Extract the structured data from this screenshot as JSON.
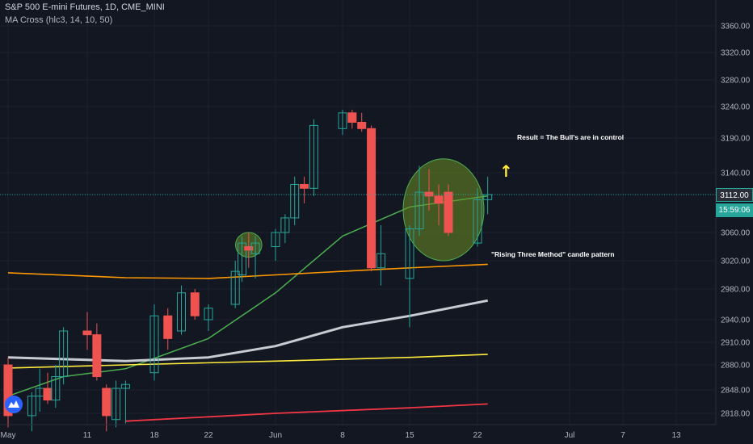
{
  "legend": {
    "symbol_line": "S&P 500 E-mini Futures, 1D, CME_MINI",
    "indicator_line": "MA Cross (hlc3, 14, 10, 50)"
  },
  "price_badge": "3112.00",
  "countdown_badge": "15:59:06",
  "annotations": {
    "result_text": "Result = The Bull's are in control",
    "pattern_text": "\"Rising Three Method\"  candle pattern",
    "arrow_glyph": "↑"
  },
  "colors": {
    "background": "#131722",
    "up": "#26a69a",
    "down": "#ef5350",
    "grid": "#1e222d",
    "ma_green": "#4caf50",
    "ma_orange": "#ff9800",
    "ma_white": "#c8cbd2",
    "ma_yellow": "#ffeb3b",
    "ma_red": "#f23645",
    "highlight_fill": "#6b8e23",
    "arrow": "#ffeb3b"
  },
  "chart_data": {
    "type": "candlestick",
    "y_axis": {
      "ticks": [
        3360,
        3320,
        3280,
        3240,
        3190,
        3140,
        3112,
        3060,
        3020,
        2980,
        2940,
        2910,
        2880,
        2848,
        2818
      ],
      "tick_labels": [
        "3360.00",
        "3320.00",
        "3280.00",
        "3240.00",
        "3190.00",
        "3140.00",
        "3112.00",
        "3060.00",
        "3020.00",
        "2980.00",
        "2940.00",
        "2910.00",
        "2880.00",
        "2848.00",
        "2818.00"
      ]
    },
    "x_axis": {
      "labels": [
        {
          "text": "May",
          "date": "2020-05-01"
        },
        {
          "text": "11",
          "date": "2020-05-11"
        },
        {
          "text": "18",
          "date": "2020-05-18"
        },
        {
          "text": "22",
          "date": "2020-05-22"
        },
        {
          "text": "Jun",
          "date": "2020-06-01"
        },
        {
          "text": "8",
          "date": "2020-06-08"
        },
        {
          "text": "15",
          "date": "2020-06-15"
        },
        {
          "text": "22",
          "date": "2020-06-22"
        },
        {
          "text": "Jul",
          "date": "2020-07-01"
        },
        {
          "text": "7",
          "date": "2020-07-07"
        },
        {
          "text": "13",
          "date": "2020-07-13"
        }
      ]
    },
    "current_price": 3112,
    "candles": [
      {
        "date": "2020-05-01",
        "open": 2880,
        "high": 2890,
        "low": 2800,
        "close": 2815
      },
      {
        "date": "2020-05-04",
        "open": 2815,
        "high": 2845,
        "low": 2795,
        "close": 2840
      },
      {
        "date": "2020-05-05",
        "open": 2840,
        "high": 2875,
        "low": 2820,
        "close": 2850
      },
      {
        "date": "2020-05-06",
        "open": 2850,
        "high": 2870,
        "low": 2830,
        "close": 2835
      },
      {
        "date": "2020-05-07",
        "open": 2835,
        "high": 2880,
        "low": 2825,
        "close": 2865
      },
      {
        "date": "2020-05-08",
        "open": 2865,
        "high": 2930,
        "low": 2855,
        "close": 2925
      },
      {
        "date": "2020-05-11",
        "open": 2925,
        "high": 2950,
        "low": 2900,
        "close": 2920
      },
      {
        "date": "2020-05-12",
        "open": 2920,
        "high": 2935,
        "low": 2860,
        "close": 2865
      },
      {
        "date": "2020-05-13",
        "open": 2850,
        "high": 2855,
        "low": 2795,
        "close": 2815
      },
      {
        "date": "2020-05-14",
        "open": 2810,
        "high": 2860,
        "low": 2800,
        "close": 2850
      },
      {
        "date": "2020-05-15",
        "open": 2850,
        "high": 2860,
        "low": 2805,
        "close": 2855
      },
      {
        "date": "2020-05-18",
        "open": 2870,
        "high": 2960,
        "low": 2860,
        "close": 2945
      },
      {
        "date": "2020-05-19",
        "open": 2945,
        "high": 2955,
        "low": 2900,
        "close": 2915
      },
      {
        "date": "2020-05-20",
        "open": 2925,
        "high": 2985,
        "low": 2920,
        "close": 2975
      },
      {
        "date": "2020-05-21",
        "open": 2975,
        "high": 2980,
        "low": 2940,
        "close": 2945
      },
      {
        "date": "2020-05-22",
        "open": 2940,
        "high": 2960,
        "low": 2925,
        "close": 2955
      },
      {
        "date": "2020-05-26",
        "open": 2960,
        "high": 3020,
        "low": 2955,
        "close": 3005
      },
      {
        "date": "2020-05-27",
        "open": 3000,
        "high": 3055,
        "low": 2990,
        "close": 3045
      },
      {
        "date": "2020-05-28",
        "open": 3040,
        "high": 3060,
        "low": 3010,
        "close": 3035
      },
      {
        "date": "2020-05-29",
        "open": 3030,
        "high": 3055,
        "low": 2995,
        "close": 3045
      },
      {
        "date": "2020-06-01",
        "open": 3040,
        "high": 3065,
        "low": 3020,
        "close": 3060
      },
      {
        "date": "2020-06-02",
        "open": 3060,
        "high": 3085,
        "low": 3045,
        "close": 3080
      },
      {
        "date": "2020-06-03",
        "open": 3080,
        "high": 3135,
        "low": 3070,
        "close": 3125
      },
      {
        "date": "2020-06-04",
        "open": 3125,
        "high": 3135,
        "low": 3100,
        "close": 3120
      },
      {
        "date": "2020-06-05",
        "open": 3120,
        "high": 3220,
        "low": 3110,
        "close": 3210
      },
      {
        "date": "2020-06-08",
        "open": 3205,
        "high": 3235,
        "low": 3195,
        "close": 3230
      },
      {
        "date": "2020-06-09",
        "open": 3230,
        "high": 3235,
        "low": 3205,
        "close": 3215
      },
      {
        "date": "2020-06-10",
        "open": 3215,
        "high": 3230,
        "low": 3200,
        "close": 3205
      },
      {
        "date": "2020-06-11",
        "open": 3205,
        "high": 3210,
        "low": 3005,
        "close": 3010
      },
      {
        "date": "2020-06-12",
        "open": 3010,
        "high": 3070,
        "low": 2985,
        "close": 3030
      },
      {
        "date": "2020-06-15",
        "open": 2995,
        "high": 3070,
        "low": 2930,
        "close": 3065
      },
      {
        "date": "2020-06-16",
        "open": 3065,
        "high": 3150,
        "low": 3055,
        "close": 3115
      },
      {
        "date": "2020-06-17",
        "open": 3115,
        "high": 3145,
        "low": 3090,
        "close": 3110
      },
      {
        "date": "2020-06-18",
        "open": 3110,
        "high": 3125,
        "low": 3070,
        "close": 3100
      },
      {
        "date": "2020-06-19",
        "open": 3115,
        "high": 3125,
        "low": 3055,
        "close": 3060
      },
      {
        "date": "2020-06-22",
        "open": 3045,
        "high": 3120,
        "low": 3040,
        "close": 3105
      },
      {
        "date": "2020-06-23",
        "open": 3105,
        "high": 3135,
        "low": 3085,
        "close": 3112
      }
    ],
    "moving_averages": [
      {
        "name": "green",
        "points": [
          [
            "2020-05-01",
            2840
          ],
          [
            "2020-05-08",
            2865
          ],
          [
            "2020-05-15",
            2875
          ],
          [
            "2020-05-22",
            2915
          ],
          [
            "2020-06-01",
            2975
          ],
          [
            "2020-06-08",
            3055
          ],
          [
            "2020-06-15",
            3095
          ],
          [
            "2020-06-23",
            3110
          ]
        ]
      },
      {
        "name": "orange",
        "points": [
          [
            "2020-05-01",
            3003
          ],
          [
            "2020-05-15",
            2996
          ],
          [
            "2020-05-22",
            2995
          ],
          [
            "2020-06-01",
            3000
          ],
          [
            "2020-06-08",
            3005
          ],
          [
            "2020-06-15",
            3010
          ],
          [
            "2020-06-23",
            3015
          ]
        ]
      },
      {
        "name": "white",
        "points": [
          [
            "2020-05-01",
            2890
          ],
          [
            "2020-05-15",
            2885
          ],
          [
            "2020-05-22",
            2890
          ],
          [
            "2020-06-01",
            2905
          ],
          [
            "2020-06-08",
            2930
          ],
          [
            "2020-06-15",
            2945
          ],
          [
            "2020-06-23",
            2965
          ]
        ]
      },
      {
        "name": "yellow",
        "points": [
          [
            "2020-05-01",
            2876
          ],
          [
            "2020-05-15",
            2880
          ],
          [
            "2020-06-01",
            2885
          ],
          [
            "2020-06-15",
            2890
          ],
          [
            "2020-06-23",
            2894
          ]
        ]
      },
      {
        "name": "red",
        "points": [
          [
            "2020-05-15",
            2808
          ],
          [
            "2020-06-01",
            2818
          ],
          [
            "2020-06-15",
            2825
          ],
          [
            "2020-06-23",
            2830
          ]
        ]
      }
    ],
    "highlights": [
      {
        "shape": "ellipse",
        "from_date": "2020-05-27",
        "to_date": "2020-05-29",
        "low": 3025,
        "high": 3060
      },
      {
        "shape": "ellipse",
        "from_date": "2020-06-15",
        "to_date": "2020-06-22",
        "low": 3020,
        "high": 3160
      }
    ]
  }
}
